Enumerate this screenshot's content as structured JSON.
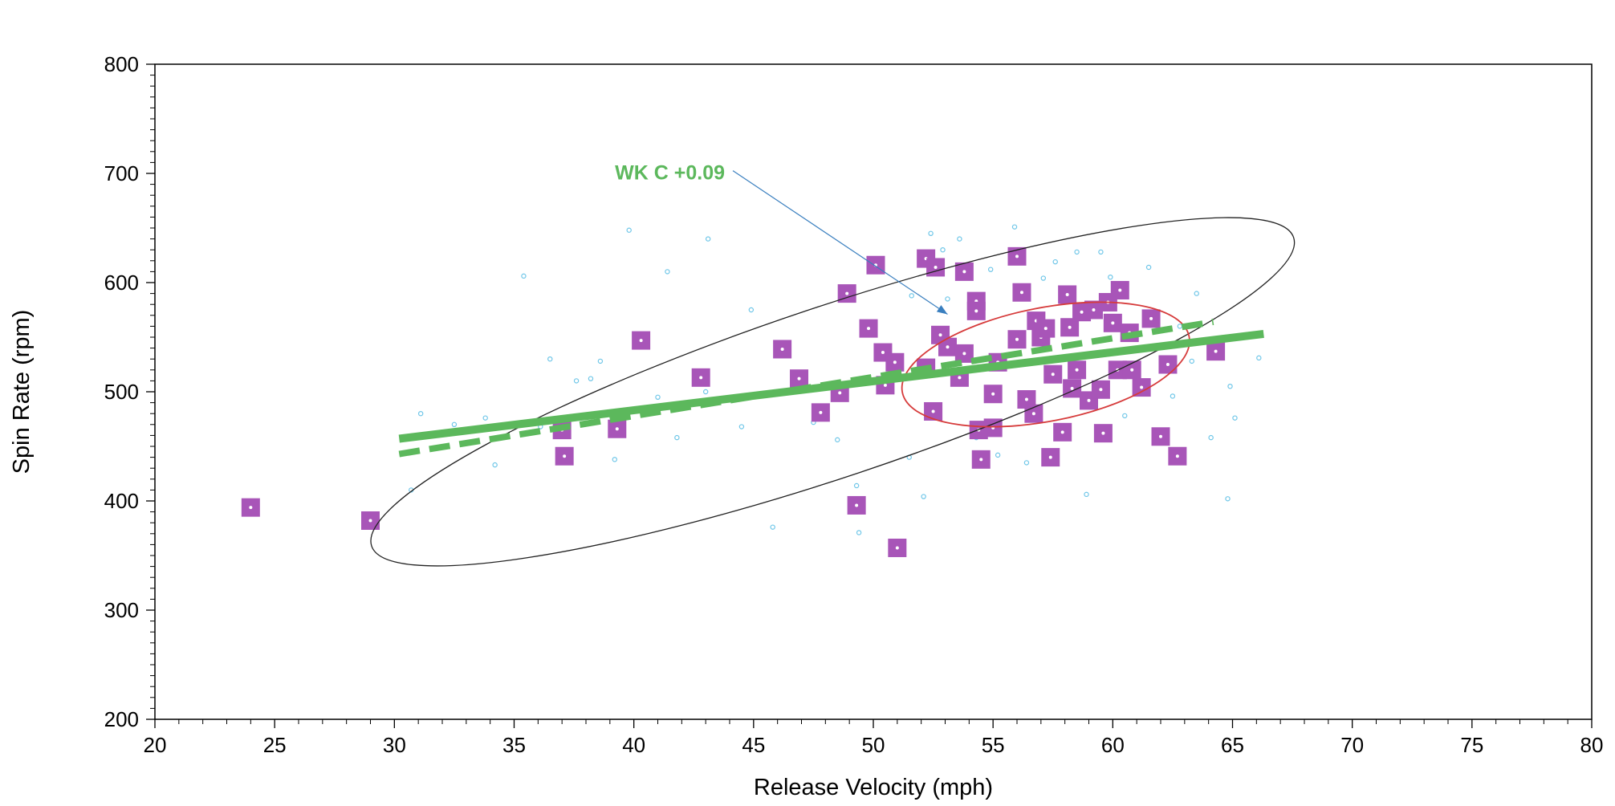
{
  "chart_data": {
    "type": "scatter",
    "title": "",
    "xlabel": "Release Velocity (mph)",
    "ylabel": "Spin Rate (rpm)",
    "xlim": [
      20,
      80
    ],
    "ylim": [
      200,
      800
    ],
    "x_ticks": [
      20,
      25,
      30,
      35,
      40,
      45,
      50,
      55,
      60,
      65,
      70,
      75,
      80
    ],
    "y_ticks": [
      200,
      300,
      400,
      500,
      600,
      700,
      800
    ],
    "grid": false,
    "colors": {
      "highlight": "#a855b8",
      "background_points": "#6ec6e8",
      "fit_line": "#5cb85c",
      "outer_ellipse": "#222222",
      "inner_ellipse": "#d63b3b",
      "annotation_arrow": "#3a7fbf"
    },
    "highlighted_points": [
      [
        24.0,
        394
      ],
      [
        29.0,
        382
      ],
      [
        37.0,
        465
      ],
      [
        37.1,
        441
      ],
      [
        39.3,
        466
      ],
      [
        40.3,
        547
      ],
      [
        42.8,
        513
      ],
      [
        46.2,
        539
      ],
      [
        46.9,
        512
      ],
      [
        47.8,
        481
      ],
      [
        48.6,
        499
      ],
      [
        48.9,
        590
      ],
      [
        49.3,
        396
      ],
      [
        49.8,
        558
      ],
      [
        50.1,
        616
      ],
      [
        50.4,
        536
      ],
      [
        50.5,
        506
      ],
      [
        50.9,
        527
      ],
      [
        51.0,
        357
      ],
      [
        52.2,
        622
      ],
      [
        52.2,
        522
      ],
      [
        52.6,
        614
      ],
      [
        52.5,
        482
      ],
      [
        52.8,
        552
      ],
      [
        53.1,
        541
      ],
      [
        53.6,
        513
      ],
      [
        53.8,
        535
      ],
      [
        53.8,
        610
      ],
      [
        54.3,
        583
      ],
      [
        54.3,
        574
      ],
      [
        54.4,
        465
      ],
      [
        54.5,
        438
      ],
      [
        55.0,
        498
      ],
      [
        55.0,
        467
      ],
      [
        55.2,
        527
      ],
      [
        56.0,
        624
      ],
      [
        56.0,
        548
      ],
      [
        56.2,
        591
      ],
      [
        56.4,
        493
      ],
      [
        56.7,
        480
      ],
      [
        56.8,
        565
      ],
      [
        57.0,
        550
      ],
      [
        57.2,
        558
      ],
      [
        57.4,
        440
      ],
      [
        57.5,
        516
      ],
      [
        57.9,
        463
      ],
      [
        58.1,
        589
      ],
      [
        58.2,
        559
      ],
      [
        58.3,
        503
      ],
      [
        58.5,
        520
      ],
      [
        58.7,
        573
      ],
      [
        59.0,
        492
      ],
      [
        59.2,
        575
      ],
      [
        59.5,
        502
      ],
      [
        59.6,
        462
      ],
      [
        59.8,
        582
      ],
      [
        60.0,
        563
      ],
      [
        60.2,
        520
      ],
      [
        60.3,
        593
      ],
      [
        60.7,
        554
      ],
      [
        60.8,
        520
      ],
      [
        61.2,
        504
      ],
      [
        61.6,
        567
      ],
      [
        62.0,
        459
      ],
      [
        62.3,
        525
      ],
      [
        62.7,
        441
      ],
      [
        64.3,
        537
      ]
    ],
    "background_points": [
      [
        35.4,
        606
      ],
      [
        39.8,
        648
      ],
      [
        41.4,
        610
      ],
      [
        43.1,
        640
      ],
      [
        34.2,
        433
      ],
      [
        36.1,
        468
      ],
      [
        30.7,
        410
      ],
      [
        31.1,
        480
      ],
      [
        36.5,
        530
      ],
      [
        38.2,
        512
      ],
      [
        39.2,
        438
      ],
      [
        41.8,
        458
      ],
      [
        44.5,
        468
      ],
      [
        45.8,
        376
      ],
      [
        49.4,
        371
      ],
      [
        49.3,
        414
      ],
      [
        48.5,
        456
      ],
      [
        47.5,
        472
      ],
      [
        44.9,
        575
      ],
      [
        43.0,
        500
      ],
      [
        41.0,
        495
      ],
      [
        38.6,
        528
      ],
      [
        37.6,
        510
      ],
      [
        32.5,
        470
      ],
      [
        33.8,
        476
      ],
      [
        51.6,
        588
      ],
      [
        52.4,
        645
      ],
      [
        53.1,
        585
      ],
      [
        54.3,
        458
      ],
      [
        55.2,
        442
      ],
      [
        55.9,
        651
      ],
      [
        57.6,
        619
      ],
      [
        58.5,
        628
      ],
      [
        59.9,
        605
      ],
      [
        61.5,
        614
      ],
      [
        63.5,
        590
      ],
      [
        64.9,
        505
      ],
      [
        65.1,
        476
      ],
      [
        66.1,
        531
      ],
      [
        64.8,
        402
      ],
      [
        58.9,
        406
      ],
      [
        57.3,
        442
      ],
      [
        52.1,
        404
      ],
      [
        51.5,
        440
      ],
      [
        56.4,
        435
      ],
      [
        60.5,
        478
      ],
      [
        62.5,
        496
      ],
      [
        63.3,
        528
      ],
      [
        64.1,
        458
      ],
      [
        52.9,
        630
      ],
      [
        53.6,
        640
      ],
      [
        54.9,
        612
      ],
      [
        57.1,
        604
      ],
      [
        59.5,
        628
      ],
      [
        62.8,
        560
      ],
      [
        65.2,
        549
      ]
    ],
    "regression_lines": [
      {
        "name": "solid fit",
        "x": [
          30.2,
          66.3
        ],
        "y": [
          457,
          553
        ],
        "style": "solid"
      },
      {
        "name": "dashed fit",
        "x": [
          30.2,
          64.2
        ],
        "y": [
          443,
          564
        ],
        "style": "dashed"
      }
    ],
    "ellipses": [
      {
        "name": "outer 95% ellipse",
        "cx": 48.3,
        "cy": 500,
        "rx": 20.3,
        "ry": 78,
        "rotation_deg": -18.5
      },
      {
        "name": "inner 50% ellipse",
        "cx": 57.2,
        "cy": 525,
        "rx": 6.1,
        "ry": 52,
        "rotation_deg": -11
      }
    ],
    "annotation": {
      "text": "WK C +0.09",
      "label_at": [
        43.8,
        701
      ],
      "arrow_to": [
        53.1,
        571
      ]
    }
  }
}
